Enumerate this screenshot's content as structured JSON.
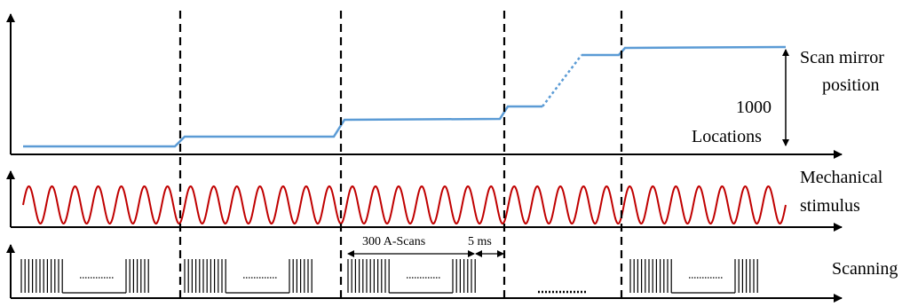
{
  "labels": {
    "scan_mirror_line1": "Scan mirror",
    "scan_mirror_line2": "position",
    "locations_count": "1000",
    "locations_word": "Locations",
    "mechanical_line1": "Mechanical",
    "mechanical_line2": "stimulus",
    "scanning": "Scanning",
    "ascans": "300 A-Scans",
    "gap": "5 ms"
  },
  "colors": {
    "mirror": "#5b9bd5",
    "stimulus": "#c00000",
    "ink": "#000000"
  },
  "mirror_levels": [
    0,
    1,
    2,
    3,
    4,
    5
  ],
  "stimulus": {
    "cycles": 33
  },
  "scanning_blocks": 4
}
